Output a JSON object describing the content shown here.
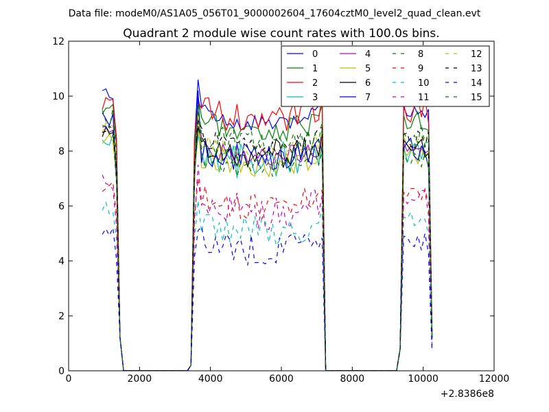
{
  "figure": {
    "suptitle": "Data file: modeM0/AS1A05_056T01_9000002604_17604cztM0_level2_quad_clean.evt"
  },
  "chart_data": {
    "type": "line",
    "title": "Quadrant 2 module wise count rates with 100.0s bins.",
    "xlabel": "",
    "ylabel": "",
    "x_offset_label": "+2.8386e8",
    "xlim": [
      0,
      12000
    ],
    "ylim": [
      0,
      12
    ],
    "xticks": [
      0,
      2000,
      4000,
      6000,
      8000,
      10000,
      12000
    ],
    "xtick_labels": [
      "0",
      "2000",
      "4000",
      "6000",
      "8000",
      "10000",
      "12000"
    ],
    "yticks": [
      0,
      2,
      4,
      6,
      8,
      10,
      12
    ],
    "ytick_labels": [
      "0",
      "2",
      "4",
      "6",
      "8",
      "10",
      "12"
    ],
    "grid": false,
    "legend_position": "top-right",
    "bin_seconds": 100,
    "segments": [
      {
        "start": 950,
        "end": 1350,
        "edge_end": 1450
      },
      {
        "start": 3550,
        "end": 7150,
        "edge_start": 3450,
        "edge_end": 7250
      },
      {
        "start": 9650,
        "end": 10150,
        "edge_start": 9250,
        "edge_end": 10250
      }
    ],
    "series": [
      {
        "name": "0",
        "color": "#0000ff",
        "dash": "solid",
        "level": 9.3,
        "peak": 10.6
      },
      {
        "name": "1",
        "color": "#008000",
        "dash": "solid",
        "level": 9.0,
        "peak": 10.0
      },
      {
        "name": "2",
        "color": "#ff0000",
        "dash": "solid",
        "level": 9.4,
        "peak": 9.8
      },
      {
        "name": "3",
        "color": "#00bfbf",
        "dash": "solid",
        "level": 7.9,
        "peak": 8.6
      },
      {
        "name": "4",
        "color": "#bf00bf",
        "dash": "solid",
        "level": 8.0,
        "peak": 9.2
      },
      {
        "name": "5",
        "color": "#bfbf00",
        "dash": "solid",
        "level": 7.7,
        "peak": 9.0
      },
      {
        "name": "6",
        "color": "#000000",
        "dash": "solid",
        "level": 8.1,
        "peak": 8.9
      },
      {
        "name": "7",
        "color": "#0000ff",
        "dash": "solid",
        "level": 7.8,
        "peak": 10.2
      },
      {
        "name": "8",
        "color": "#008000",
        "dash": "dashed",
        "level": 7.6,
        "peak": 9.5
      },
      {
        "name": "9",
        "color": "#ff0000",
        "dash": "dashed",
        "level": 6.2,
        "peak": 7.0
      },
      {
        "name": "10",
        "color": "#00bfbf",
        "dash": "dashed",
        "level": 5.3,
        "peak": 6.2
      },
      {
        "name": "11",
        "color": "#bf00bf",
        "dash": "dashed",
        "level": 6.0,
        "peak": 7.5
      },
      {
        "name": "12",
        "color": "#bfbf00",
        "dash": "dashed",
        "level": 8.2,
        "peak": 9.3
      },
      {
        "name": "13",
        "color": "#000000",
        "dash": "dashed",
        "level": 8.3,
        "peak": 9.1
      },
      {
        "name": "14",
        "color": "#0000ff",
        "dash": "dashed",
        "level": 4.6,
        "peak": 5.1
      },
      {
        "name": "15",
        "color": "#008000",
        "dash": "dashed",
        "level": 8.4,
        "peak": 9.7
      }
    ]
  }
}
